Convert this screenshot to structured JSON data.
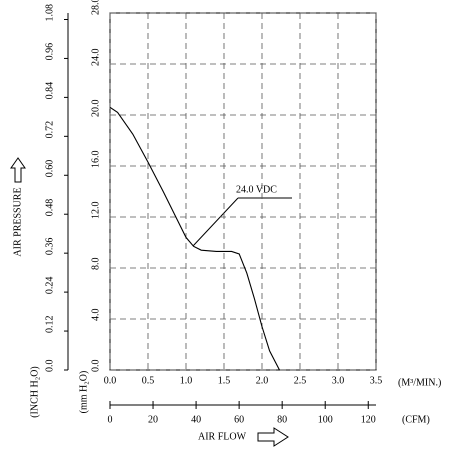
{
  "chart_data": {
    "type": "line",
    "y_title": "AIR PRESSURE",
    "x_title": "AIR FLOW",
    "x_label": "(M³/MIN.)",
    "x2_label": "(CFM)",
    "y_label": "(mm H₂O)",
    "y2_label": "(INCH H₂O)",
    "annotation": "24.0 VDC",
    "grid": true,
    "x": [
      0,
      0.1,
      0.3,
      0.5,
      0.7,
      0.9,
      1.0,
      1.1,
      1.2,
      1.4,
      1.6,
      1.7,
      1.8,
      1.9,
      2.0,
      2.1,
      2.23
    ],
    "series": [
      {
        "color": "#000000",
        "values": [
          20.6,
          20.2,
          18.5,
          16.3,
          14.0,
          11.6,
          10.4,
          9.7,
          9.4,
          9.3,
          9.3,
          9.1,
          7.6,
          5.6,
          3.4,
          1.5,
          0
        ]
      }
    ],
    "xlim": [
      0,
      3.5
    ],
    "xticks": [
      {
        "value": 0,
        "label": "0.0"
      },
      {
        "value": 0.5,
        "label": "0.5"
      },
      {
        "value": 1,
        "label": "1.0"
      },
      {
        "value": 1.5,
        "label": "1.5"
      },
      {
        "value": 2,
        "label": "2.0"
      },
      {
        "value": 2.5,
        "label": "2.5"
      },
      {
        "value": 3,
        "label": "3.0"
      },
      {
        "value": 3.5,
        "label": "3.5"
      }
    ],
    "x2lim": [
      0,
      123.6
    ],
    "x2ticks": [
      0,
      20,
      40,
      60,
      80,
      100,
      120
    ],
    "ylim": [
      0,
      28
    ],
    "yticks": [
      {
        "value": 0,
        "label": "0.0"
      },
      {
        "value": 4,
        "label": "4.0"
      },
      {
        "value": 8,
        "label": "8.0"
      },
      {
        "value": 12,
        "label": "12.0"
      },
      {
        "value": 16,
        "label": "16.0"
      },
      {
        "value": 20,
        "label": "20.0"
      },
      {
        "value": 24,
        "label": "24.0"
      },
      {
        "value": 28,
        "label": "28.0"
      }
    ],
    "y2lim": [
      0,
      1.1
    ],
    "y2ticks": [
      {
        "value": 0,
        "label": "0.0"
      },
      0.12,
      0.24,
      0.36,
      0.48,
      {
        "value": 0.6,
        "label": "0.60"
      },
      0.72,
      0.84,
      0.96,
      1.08
    ]
  }
}
